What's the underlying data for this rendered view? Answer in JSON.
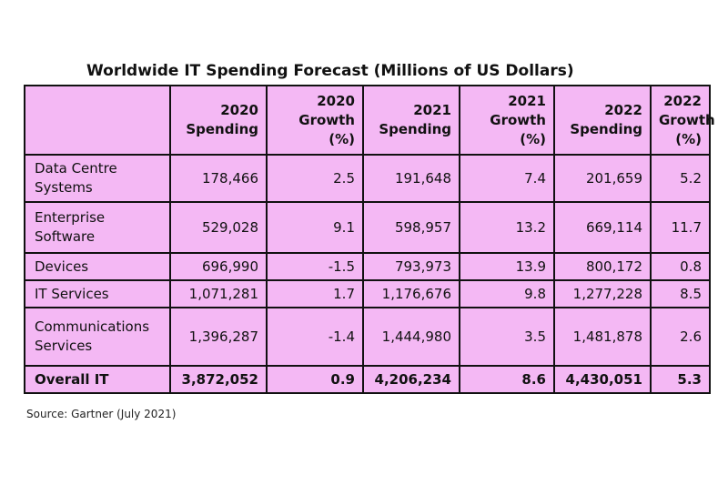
{
  "title": "Worldwide IT Spending Forecast (Millions of US Dollars)",
  "headers": [
    "",
    "2020 Spending",
    "2020 Growth (%)",
    "2021 Spending",
    "2021 Growth (%)",
    "2022 Spending",
    "2022 Growth (%)"
  ],
  "rows": [
    {
      "category": "Data Centre Systems",
      "values": [
        "178,466",
        "2.5",
        "191,648",
        "7.4",
        "201,659",
        "5.2"
      ]
    },
    {
      "category": "Enterprise Software",
      "values": [
        "529,028",
        "9.1",
        "598,957",
        "13.2",
        "669,114",
        "11.7"
      ]
    },
    {
      "category": "Devices",
      "values": [
        "696,990",
        "-1.5",
        "793,973",
        "13.9",
        "800,172",
        "0.8"
      ]
    },
    {
      "category": "IT Services",
      "values": [
        "1,071,281",
        "1.7",
        "1,176,676",
        "9.8",
        "1,277,228",
        "8.5"
      ]
    },
    {
      "category": "Communications Services",
      "values": [
        "1,396,287",
        "-1.4",
        "1,444,980",
        "3.5",
        "1,481,878",
        "2.6"
      ]
    },
    {
      "category": "Overall IT",
      "values": [
        "3,872,052",
        "0.9",
        "4,206,234",
        "8.6",
        "4,430,051",
        "5.3"
      ]
    }
  ],
  "source": "Source: Gartner (July 2021)",
  "colors": {
    "table_background": "#f4b8f4",
    "border": "#111111"
  }
}
